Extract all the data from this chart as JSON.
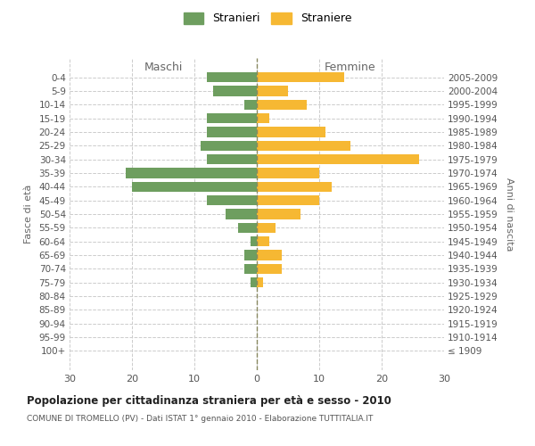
{
  "age_groups": [
    "100+",
    "95-99",
    "90-94",
    "85-89",
    "80-84",
    "75-79",
    "70-74",
    "65-69",
    "60-64",
    "55-59",
    "50-54",
    "45-49",
    "40-44",
    "35-39",
    "30-34",
    "25-29",
    "20-24",
    "15-19",
    "10-14",
    "5-9",
    "0-4"
  ],
  "birth_years": [
    "≤ 1909",
    "1910-1914",
    "1915-1919",
    "1920-1924",
    "1925-1929",
    "1930-1934",
    "1935-1939",
    "1940-1944",
    "1945-1949",
    "1950-1954",
    "1955-1959",
    "1960-1964",
    "1965-1969",
    "1970-1974",
    "1975-1979",
    "1980-1984",
    "1985-1989",
    "1990-1994",
    "1995-1999",
    "2000-2004",
    "2005-2009"
  ],
  "males": [
    0,
    0,
    0,
    0,
    0,
    1,
    2,
    2,
    1,
    3,
    5,
    8,
    20,
    21,
    8,
    9,
    8,
    8,
    2,
    7,
    8
  ],
  "females": [
    0,
    0,
    0,
    0,
    0,
    1,
    4,
    4,
    2,
    3,
    7,
    10,
    12,
    10,
    26,
    15,
    11,
    2,
    8,
    5,
    14
  ],
  "male_color": "#6e9e5f",
  "female_color": "#f6b833",
  "background_color": "#ffffff",
  "grid_color": "#cccccc",
  "title": "Popolazione per cittadinanza straniera per età e sesso - 2010",
  "subtitle": "COMUNE DI TROMELLO (PV) - Dati ISTAT 1° gennaio 2010 - Elaborazione TUTTITALIA.IT",
  "label_left": "Maschi",
  "label_right": "Femmine",
  "ylabel_left": "Fasce di età",
  "ylabel_right": "Anni di nascita",
  "legend_male": "Stranieri",
  "legend_female": "Straniere",
  "xlim": 30,
  "bar_height": 0.75
}
